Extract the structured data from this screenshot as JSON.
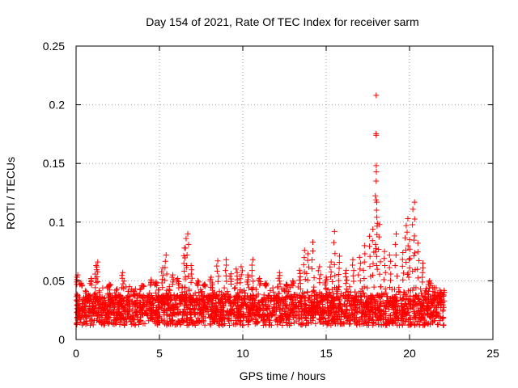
{
  "chart_data": {
    "type": "scatter",
    "title": "Day 154 of 2021, Rate Of TEC Index for receiver sarm",
    "xlabel": "GPS time / hours",
    "ylabel": "ROTI / TECUs",
    "xlim": [
      0,
      25
    ],
    "ylim": [
      0,
      0.25
    ],
    "xticks": [
      0,
      5,
      10,
      15,
      20,
      25
    ],
    "xtick_labels": [
      "0",
      "5",
      "10",
      "15",
      "20",
      "25"
    ],
    "yticks": [
      0,
      0.05,
      0.1,
      0.15,
      0.2,
      0.25
    ],
    "ytick_labels": [
      "0",
      "0.05",
      "0.1",
      "0.15",
      "0.2",
      "0.25"
    ],
    "grid": true,
    "marker": "+",
    "color": "#ff0000",
    "series": [
      {
        "name": "ROTI",
        "points": [
          [
            0.1,
            0.055
          ],
          [
            0.3,
            0.048
          ],
          [
            0.6,
            0.041
          ],
          [
            0.9,
            0.052
          ],
          [
            1.2,
            0.063
          ],
          [
            1.3,
            0.066
          ],
          [
            1.6,
            0.044
          ],
          [
            2.0,
            0.047
          ],
          [
            2.4,
            0.042
          ],
          [
            2.8,
            0.057
          ],
          [
            3.2,
            0.045
          ],
          [
            3.6,
            0.039
          ],
          [
            4.0,
            0.046
          ],
          [
            4.5,
            0.051
          ],
          [
            4.8,
            0.049
          ],
          [
            5.2,
            0.061
          ],
          [
            5.4,
            0.072
          ],
          [
            5.8,
            0.055
          ],
          [
            6.1,
            0.052
          ],
          [
            6.5,
            0.078
          ],
          [
            6.6,
            0.086
          ],
          [
            6.7,
            0.09
          ],
          [
            6.9,
            0.063
          ],
          [
            7.3,
            0.05
          ],
          [
            7.7,
            0.047
          ],
          [
            8.1,
            0.053
          ],
          [
            8.5,
            0.067
          ],
          [
            9.0,
            0.068
          ],
          [
            9.3,
            0.056
          ],
          [
            9.6,
            0.06
          ],
          [
            9.9,
            0.062
          ],
          [
            10.3,
            0.055
          ],
          [
            10.6,
            0.068
          ],
          [
            11.0,
            0.052
          ],
          [
            11.4,
            0.048
          ],
          [
            11.8,
            0.044
          ],
          [
            12.2,
            0.057
          ],
          [
            12.6,
            0.047
          ],
          [
            13.0,
            0.05
          ],
          [
            13.4,
            0.059
          ],
          [
            13.7,
            0.076
          ],
          [
            13.9,
            0.073
          ],
          [
            14.2,
            0.083
          ],
          [
            14.6,
            0.062
          ],
          [
            15.0,
            0.053
          ],
          [
            15.3,
            0.066
          ],
          [
            15.5,
            0.092
          ],
          [
            15.8,
            0.071
          ],
          [
            16.2,
            0.059
          ],
          [
            16.6,
            0.068
          ],
          [
            17.0,
            0.07
          ],
          [
            17.3,
            0.08
          ],
          [
            17.6,
            0.088
          ],
          [
            17.8,
            0.094
          ],
          [
            18.0,
            0.119
          ],
          [
            18.0,
            0.135
          ],
          [
            18.0,
            0.174
          ],
          [
            18.0,
            0.208
          ],
          [
            18.2,
            0.098
          ],
          [
            18.5,
            0.075
          ],
          [
            18.8,
            0.072
          ],
          [
            19.2,
            0.09
          ],
          [
            19.6,
            0.074
          ],
          [
            19.8,
            0.097
          ],
          [
            19.9,
            0.103
          ],
          [
            20.0,
            0.085
          ],
          [
            20.2,
            0.111
          ],
          [
            20.3,
            0.117
          ],
          [
            20.5,
            0.082
          ],
          [
            20.8,
            0.065
          ],
          [
            21.2,
            0.05
          ],
          [
            21.6,
            0.044
          ],
          [
            22.0,
            0.038
          ]
        ]
      }
    ],
    "base_band": {
      "x_range": [
        0,
        22.1
      ],
      "y_range": [
        0.006,
        0.045
      ],
      "typical": 0.02
    }
  }
}
